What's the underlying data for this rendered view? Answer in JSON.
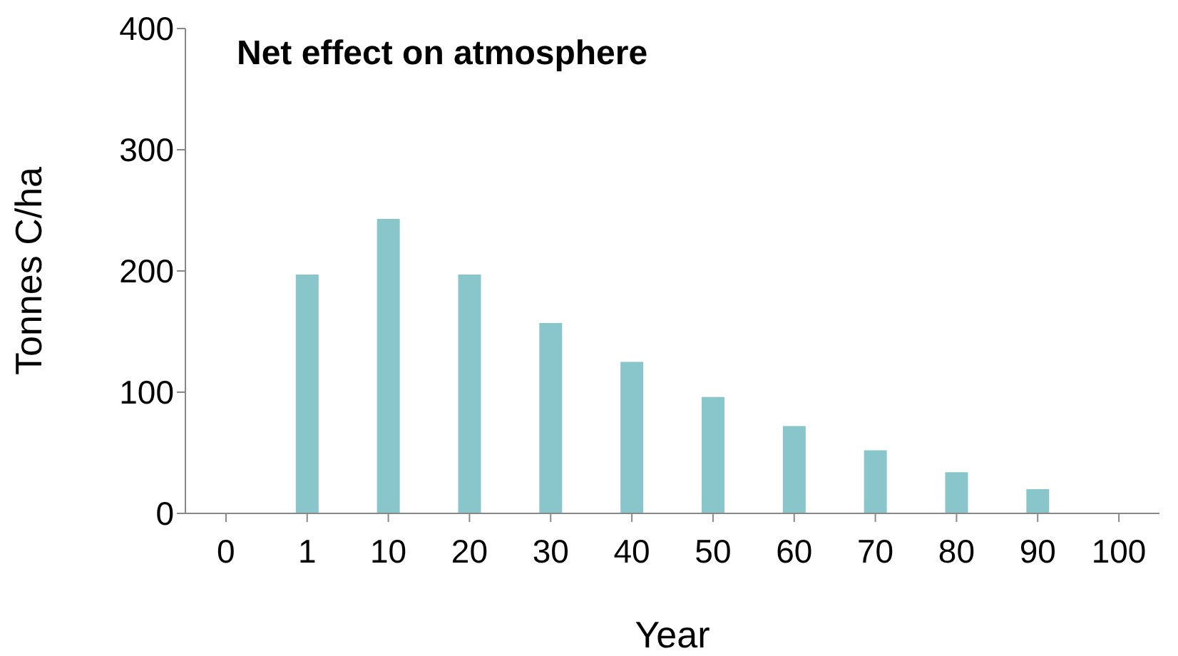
{
  "chart_data": {
    "type": "bar",
    "title": "Net effect on atmosphere",
    "xlabel": "Year",
    "ylabel": "Tonnes C/ha",
    "categories": [
      "0",
      "1",
      "10",
      "20",
      "30",
      "40",
      "50",
      "60",
      "70",
      "80",
      "90",
      "100"
    ],
    "values": [
      0,
      197,
      243,
      197,
      157,
      125,
      96,
      72,
      52,
      34,
      20,
      0
    ],
    "color": "#89c6cc",
    "ylim": [
      0,
      400
    ],
    "yticks": [
      0,
      100,
      200,
      300,
      400
    ],
    "grid": false,
    "legend": false
  }
}
